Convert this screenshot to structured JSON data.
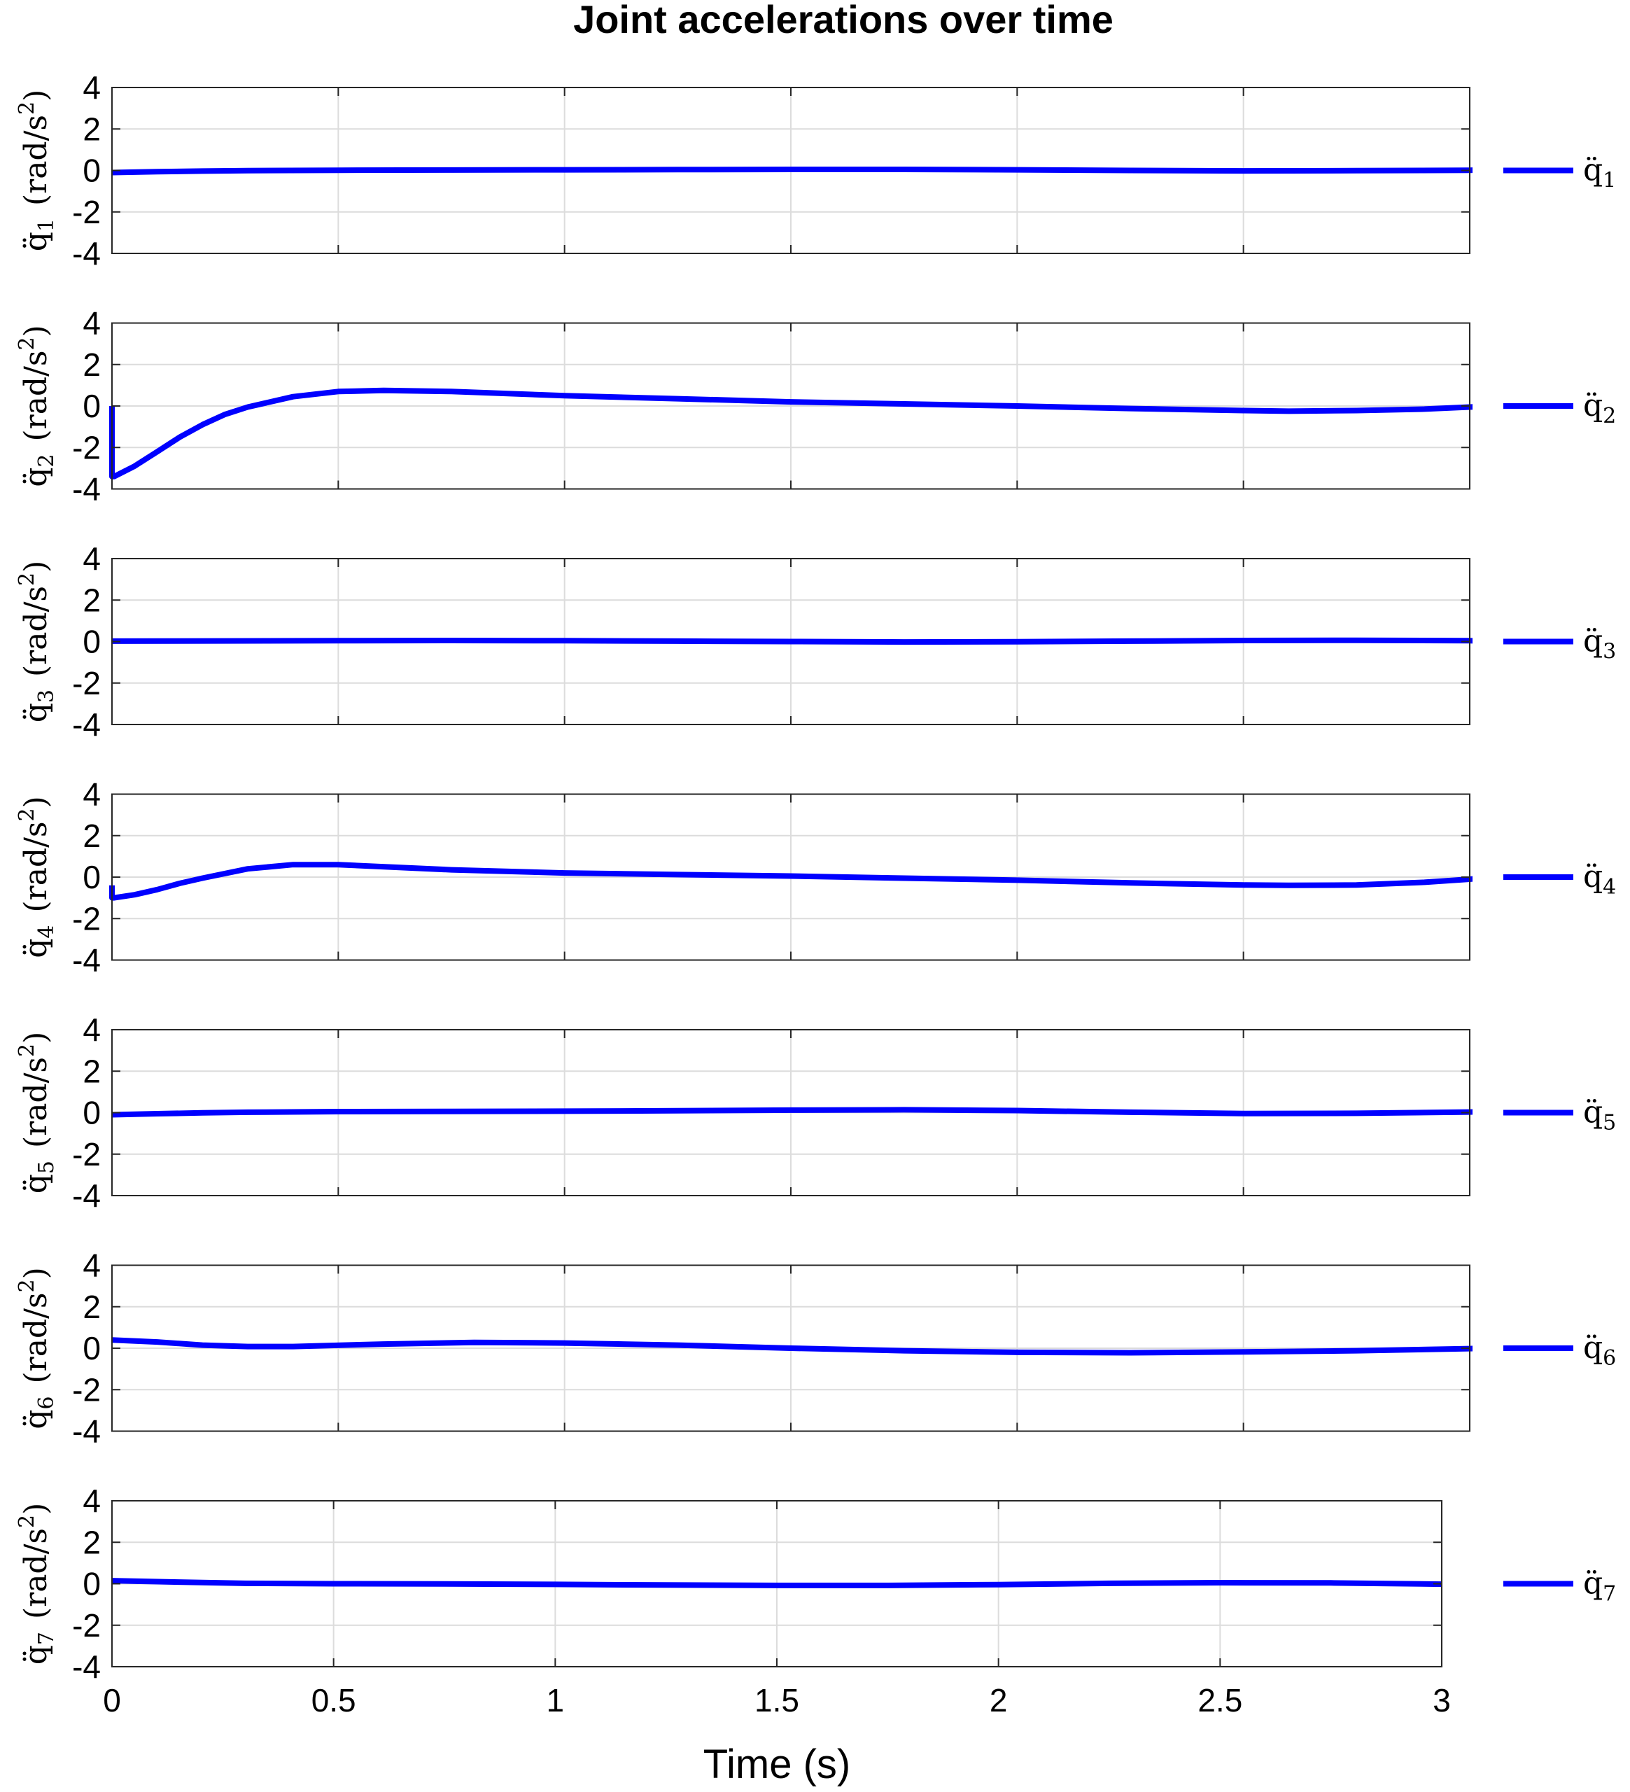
{
  "figure_title": "Joint accelerations over time",
  "colors": {
    "line": "#0000ff",
    "grid": "#dcdcdc",
    "axes": "#262626"
  },
  "chart_data": {
    "type": "line",
    "title": "Joint accelerations over time",
    "xlabel": "Time (s)",
    "xlim": [
      0,
      3
    ],
    "ylim": [
      -4,
      4
    ],
    "xticks": [
      0,
      0.5,
      1,
      1.5,
      2,
      2.5,
      3
    ],
    "xtick_labels": [
      "0",
      "0.5",
      "1",
      "1.5",
      "2",
      "2.5",
      "3"
    ],
    "yticks": [
      4,
      2,
      0,
      -2,
      -4
    ],
    "ytick_labels": [
      "4",
      "2",
      "0",
      "-2",
      "-4"
    ],
    "grid": true,
    "legend_placement": "right of each subplot",
    "subplots": [
      {
        "ylabel_symbol": "q̈",
        "ylabel_index": "1",
        "ylabel_unit_open": "(rad/s",
        "ylabel_unit_exp": "2",
        "ylabel_unit_close": ")",
        "legend_symbol": "q̈",
        "legend_index": "1",
        "x": [
          0,
          0.1,
          0.2,
          0.3,
          0.5,
          0.75,
          1,
          1.25,
          1.5,
          1.75,
          2,
          2.25,
          2.5,
          2.75,
          3,
          3.05
        ],
        "y": [
          -0.1,
          -0.06,
          -0.03,
          -0.01,
          0.01,
          0.02,
          0.03,
          0.04,
          0.05,
          0.05,
          0.03,
          0,
          -0.02,
          -0.01,
          0.01,
          0.02
        ]
      },
      {
        "ylabel_symbol": "q̈",
        "ylabel_index": "2",
        "ylabel_unit_open": "(rad/s",
        "ylabel_unit_exp": "2",
        "ylabel_unit_close": ")",
        "legend_symbol": "q̈",
        "legend_index": "2",
        "x": [
          0,
          0,
          0.005,
          0.05,
          0.1,
          0.15,
          0.2,
          0.25,
          0.3,
          0.4,
          0.5,
          0.6,
          0.75,
          1,
          1.25,
          1.5,
          1.75,
          2,
          2.25,
          2.5,
          2.6,
          2.75,
          2.9,
          3,
          3.05
        ],
        "y": [
          0,
          -3.4,
          -3.4,
          -2.9,
          -2.2,
          -1.5,
          -0.9,
          -0.4,
          -0.05,
          0.45,
          0.7,
          0.75,
          0.7,
          0.5,
          0.35,
          0.2,
          0.1,
          0,
          -0.12,
          -0.22,
          -0.25,
          -0.22,
          -0.15,
          -0.05,
          0
        ]
      },
      {
        "ylabel_symbol": "q̈",
        "ylabel_index": "3",
        "ylabel_unit_open": "(rad/s",
        "ylabel_unit_exp": "2",
        "ylabel_unit_close": ")",
        "legend_symbol": "q̈",
        "legend_index": "3",
        "x": [
          0,
          0.25,
          0.5,
          0.75,
          1,
          1.25,
          1.5,
          1.75,
          2,
          2.25,
          2.5,
          2.75,
          3,
          3.05
        ],
        "y": [
          0.02,
          0.03,
          0.04,
          0.05,
          0.04,
          0.02,
          0,
          -0.02,
          -0.01,
          0.02,
          0.05,
          0.06,
          0.04,
          0.03
        ]
      },
      {
        "ylabel_symbol": "q̈",
        "ylabel_index": "4",
        "ylabel_unit_open": "(rad/s",
        "ylabel_unit_exp": "2",
        "ylabel_unit_close": ")",
        "legend_symbol": "q̈",
        "legend_index": "4",
        "x": [
          0,
          0,
          0.005,
          0.05,
          0.1,
          0.15,
          0.2,
          0.3,
          0.4,
          0.5,
          0.75,
          1,
          1.25,
          1.5,
          1.75,
          2,
          2.25,
          2.5,
          2.6,
          2.75,
          2.9,
          3,
          3.05
        ],
        "y": [
          -0.4,
          -1.0,
          -1.0,
          -0.85,
          -0.6,
          -0.3,
          -0.05,
          0.4,
          0.6,
          0.6,
          0.35,
          0.2,
          0.12,
          0.05,
          -0.05,
          -0.15,
          -0.28,
          -0.38,
          -0.4,
          -0.38,
          -0.25,
          -0.1,
          0
        ]
      },
      {
        "ylabel_symbol": "q̈",
        "ylabel_index": "5",
        "ylabel_unit_open": "(rad/s",
        "ylabel_unit_exp": "2",
        "ylabel_unit_close": ")",
        "legend_symbol": "q̈",
        "legend_index": "5",
        "x": [
          0,
          0.1,
          0.2,
          0.3,
          0.5,
          0.75,
          1,
          1.25,
          1.5,
          1.75,
          2,
          2.25,
          2.5,
          2.75,
          3,
          3.05
        ],
        "y": [
          -0.1,
          -0.05,
          -0.01,
          0.02,
          0.05,
          0.06,
          0.07,
          0.09,
          0.12,
          0.14,
          0.1,
          0.02,
          -0.04,
          -0.03,
          0.03,
          0.05
        ]
      },
      {
        "ylabel_symbol": "q̈",
        "ylabel_index": "6",
        "ylabel_unit_open": "(rad/s",
        "ylabel_unit_exp": "2",
        "ylabel_unit_close": ")",
        "legend_symbol": "q̈",
        "legend_index": "6",
        "x": [
          0,
          0.1,
          0.2,
          0.3,
          0.4,
          0.6,
          0.8,
          1,
          1.25,
          1.5,
          1.75,
          2,
          2.25,
          2.5,
          2.75,
          3,
          3.05
        ],
        "y": [
          0.4,
          0.3,
          0.15,
          0.08,
          0.08,
          0.2,
          0.28,
          0.25,
          0.15,
          0,
          -0.12,
          -0.2,
          -0.22,
          -0.18,
          -0.12,
          -0.02,
          0.02
        ]
      },
      {
        "ylabel_symbol": "q̈",
        "ylabel_index": "7",
        "ylabel_unit_open": "(rad/s",
        "ylabel_unit_exp": "2",
        "ylabel_unit_close": ")",
        "legend_symbol": "q̈",
        "legend_index": "7",
        "x": [
          0,
          0.15,
          0.3,
          0.5,
          0.75,
          1,
          1.25,
          1.5,
          1.75,
          2,
          2.25,
          2.5,
          2.75,
          3
        ],
        "y": [
          0.15,
          0.08,
          0.02,
          0,
          -0.01,
          -0.03,
          -0.06,
          -0.08,
          -0.08,
          -0.04,
          0.02,
          0.05,
          0.04,
          -0.02
        ]
      }
    ]
  }
}
